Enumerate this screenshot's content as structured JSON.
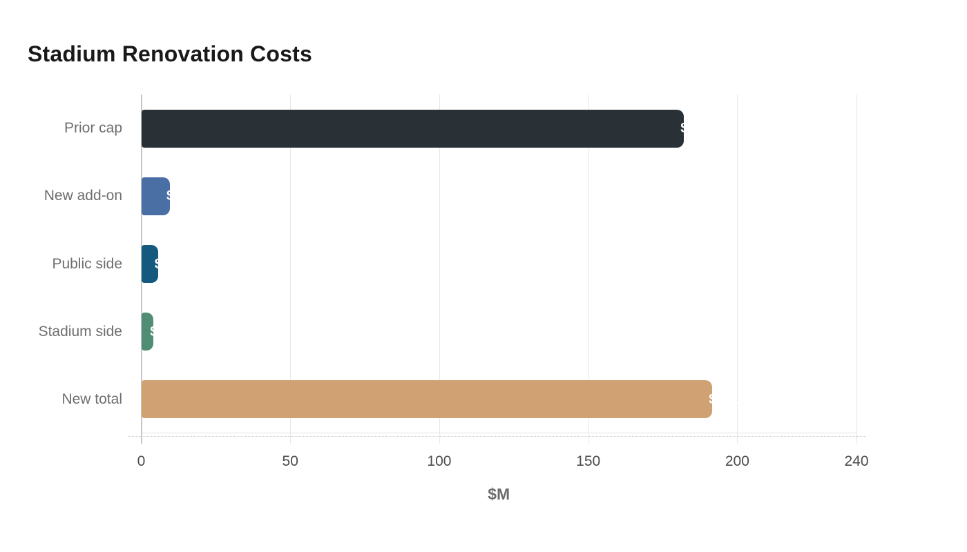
{
  "title": "Stadium Renovation Costs",
  "chart_data": {
    "type": "bar",
    "orientation": "horizontal",
    "title": "Stadium Renovation Costs",
    "xlabel": "$M",
    "ylabel": "",
    "categories": [
      "Prior cap",
      "New add-on",
      "Public side",
      "Stadium side",
      "New total"
    ],
    "values": [
      182,
      9.5,
      5.5,
      4,
      191.5
    ],
    "bar_labels": [
      "$182M",
      "$9.5M",
      "$5.5M",
      "$4M",
      "$191.5M"
    ],
    "bar_colors": [
      "#2a3136",
      "#4a6fa5",
      "#15597e",
      "#4f8e75",
      "#d0a173"
    ],
    "bar_label_color": "#ffffff",
    "x_ticks": [
      0,
      50,
      100,
      150,
      200,
      240
    ],
    "x_tick_labels": [
      "0",
      "50",
      "100",
      "150",
      "200",
      "240"
    ],
    "xlim": [
      0,
      240
    ],
    "grid": true,
    "legend": false,
    "plot_background": "#ffffff"
  }
}
